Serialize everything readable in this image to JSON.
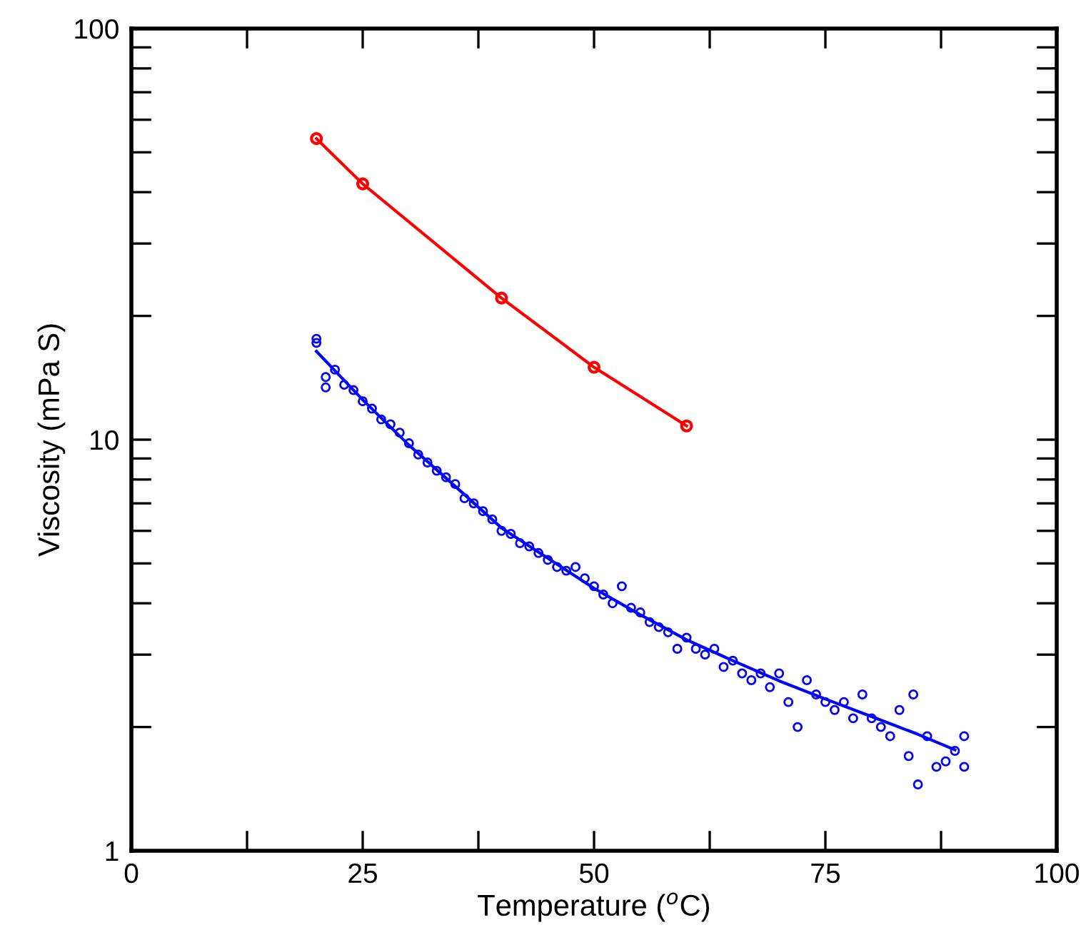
{
  "chart_data": {
    "type": "scatter",
    "xlabel": "Temperature ($^{o}$C)",
    "ylabel": "Viscosity (mPa S)",
    "log": "y",
    "grid": false,
    "legend": false,
    "xlim": [
      0,
      100
    ],
    "ylim": [
      1,
      100
    ],
    "xticks": [
      0,
      {
        "value": 12.5,
        "label": null
      },
      25,
      {
        "value": 37.5,
        "label": null
      },
      50,
      {
        "value": 62.5,
        "label": null
      },
      75,
      {
        "value": 87.5,
        "label": null
      },
      100
    ],
    "yticks": [
      1,
      {
        "value": 2,
        "label": null
      },
      {
        "value": 3,
        "label": null
      },
      {
        "value": 4,
        "label": null
      },
      {
        "value": 5,
        "label": null
      },
      {
        "value": 6,
        "label": null
      },
      {
        "value": 7,
        "label": null
      },
      {
        "value": 8,
        "label": null
      },
      {
        "value": 9,
        "label": null
      },
      10,
      {
        "value": 20,
        "label": null
      },
      {
        "value": 30,
        "label": null
      },
      {
        "value": 40,
        "label": null
      },
      {
        "value": 50,
        "label": null
      },
      {
        "value": 60,
        "label": null
      },
      {
        "value": 70,
        "label": null
      },
      {
        "value": 80,
        "label": null
      },
      {
        "value": 90,
        "label": null
      },
      100
    ],
    "series": [
      {
        "type": "line",
        "color": "#ff0000",
        "marker": "circle",
        "x": [
          20,
          25,
          40,
          50,
          60
        ],
        "values": [
          54,
          41.9,
          22.1,
          15.0,
          10.8
        ]
      },
      {
        "color": "#0000ff",
        "marker": "circle",
        "x": [
          20,
          20,
          21,
          21,
          22,
          23,
          24,
          25,
          26,
          27,
          28,
          29,
          30,
          31,
          32,
          33,
          34,
          35,
          36,
          37,
          38,
          39,
          40,
          41,
          42,
          43,
          44,
          45,
          46,
          47,
          48,
          49,
          50,
          51,
          52,
          53,
          54,
          55,
          56,
          57,
          58,
          59,
          60,
          61,
          62,
          63,
          64,
          65,
          66,
          67,
          68,
          69,
          70,
          71,
          72,
          73,
          74,
          75,
          76,
          77,
          78,
          79,
          80,
          81,
          82,
          83,
          84,
          84.5,
          85,
          86,
          87,
          88,
          89,
          90,
          90
        ],
        "values": [
          17.6,
          17.2,
          14.2,
          13.4,
          14.8,
          13.6,
          13.2,
          12.4,
          11.9,
          11.2,
          10.9,
          10.4,
          9.8,
          9.2,
          8.8,
          8.4,
          8.1,
          7.8,
          7.2,
          7.0,
          6.7,
          6.4,
          6.0,
          5.9,
          5.6,
          5.5,
          5.3,
          5.1,
          4.9,
          4.8,
          4.9,
          4.6,
          4.4,
          4.2,
          4.0,
          4.4,
          3.9,
          3.8,
          3.6,
          3.5,
          3.4,
          3.1,
          3.3,
          3.1,
          3.0,
          3.1,
          2.8,
          2.9,
          2.7,
          2.6,
          2.7,
          2.5,
          2.7,
          2.3,
          2.0,
          2.6,
          2.4,
          2.3,
          2.2,
          2.3,
          2.1,
          2.4,
          2.1,
          2.0,
          1.9,
          2.2,
          1.7,
          2.4,
          1.45,
          1.9,
          1.6,
          1.65,
          1.75,
          1.9,
          1.6
        ]
      },
      {
        "type": "line",
        "color": "#0000ff",
        "marker": "none",
        "x": [
          20,
          25,
          30,
          35,
          40,
          45,
          50,
          55,
          60,
          65,
          70,
          75,
          80,
          85,
          89
        ],
        "values": [
          16.4,
          12.5,
          9.7,
          7.7,
          6.1,
          5.15,
          4.35,
          3.75,
          3.26,
          2.9,
          2.59,
          2.34,
          2.12,
          1.92,
          1.76
        ]
      }
    ]
  }
}
